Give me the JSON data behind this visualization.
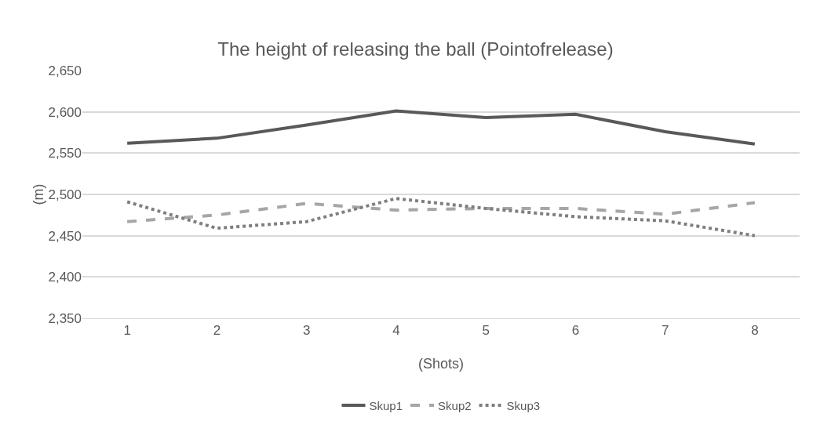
{
  "chart_data": {
    "type": "line",
    "title": "The height of releasing the ball (Pointofrelease)",
    "xlabel": "(Shots)",
    "ylabel": "(m)",
    "categories": [
      "1",
      "2",
      "3",
      "4",
      "5",
      "6",
      "7",
      "8"
    ],
    "series": [
      {
        "name": "Skup1",
        "color": "#595959",
        "line_style": "solid",
        "values": [
          2562,
          2568,
          2584,
          2601,
          2593,
          2597,
          2576,
          2561
        ]
      },
      {
        "name": "Skup2",
        "color": "#a6a6a6",
        "line_style": "dashed",
        "values": [
          2467,
          2475,
          2489,
          2481,
          2483,
          2483,
          2476,
          2490
        ]
      },
      {
        "name": "Skup3",
        "color": "#7f7f7f",
        "line_style": "dotted",
        "values": [
          2491,
          2459,
          2467,
          2495,
          2483,
          2473,
          2468,
          2450
        ]
      }
    ],
    "ylim": [
      2350,
      2650
    ],
    "yticks": [
      {
        "value": 2350,
        "label": "2,350"
      },
      {
        "value": 2400,
        "label": "2,400"
      },
      {
        "value": 2450,
        "label": "2,450"
      },
      {
        "value": 2500,
        "label": "2,500"
      },
      {
        "value": 2550,
        "label": "2,550"
      },
      {
        "value": 2600,
        "label": "2,600"
      },
      {
        "value": 2650,
        "label": "2,650"
      }
    ],
    "grid": "y",
    "legend": "bottom",
    "marker": "none"
  }
}
